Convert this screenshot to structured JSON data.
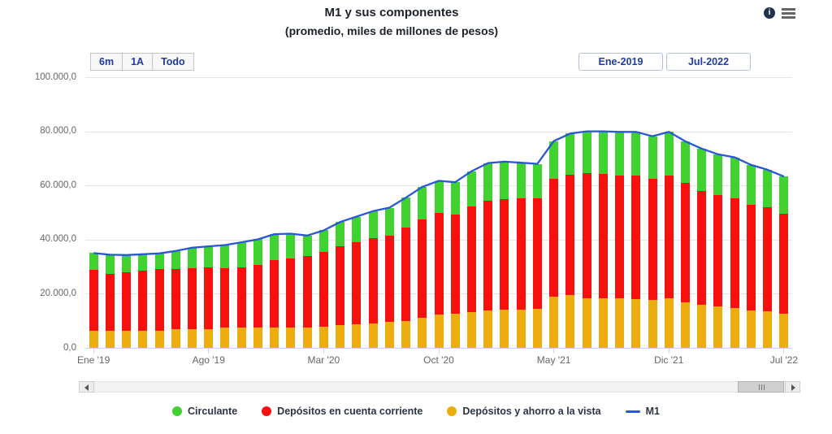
{
  "title": "M1 y sus componentes",
  "subtitle": "(promedio, miles de millones de pesos)",
  "toolbar": {
    "info_icon_glyph": "i"
  },
  "range_selector": {
    "buttons": [
      "6m",
      "1A",
      "Todo"
    ],
    "from_value": "Ene-2019",
    "to_value": "Jul-2022"
  },
  "chart_data": {
    "type": "bar",
    "subtype": "stacked-column-with-line",
    "title": "M1 y sus componentes",
    "subtitle": "(promedio, miles de millones de pesos)",
    "stacked": true,
    "grid": true,
    "legend_position": "bottom",
    "ylim": [
      0,
      100000
    ],
    "xlabel": "",
    "ylabel": "",
    "categories": [
      "Ene '19",
      "Feb '19",
      "Mar '19",
      "Abr '19",
      "May '19",
      "Jun '19",
      "Jul '19",
      "Ago '19",
      "Sep '19",
      "Oct '19",
      "Nov '19",
      "Dic '19",
      "Ene '20",
      "Feb '20",
      "Mar '20",
      "Abr '20",
      "May '20",
      "Jun '20",
      "Jul '20",
      "Ago '20",
      "Sep '20",
      "Oct '20",
      "Nov '20",
      "Dic '20",
      "Ene '21",
      "Feb '21",
      "Mar '21",
      "Abr '21",
      "May '21",
      "Jun '21",
      "Jul '21",
      "Ago '21",
      "Sep '21",
      "Oct '21",
      "Nov '21",
      "Dic '21",
      "Ene '22",
      "Feb '22",
      "Mar '22",
      "Abr '22",
      "May '22",
      "Jun '22",
      "Jul '22"
    ],
    "series": [
      {
        "name": "Circulante",
        "role": "column-top",
        "color": "#40d22e",
        "values": [
          6100,
          7000,
          6400,
          6200,
          5900,
          6800,
          7600,
          7700,
          8600,
          9200,
          9500,
          9600,
          9300,
          7600,
          8000,
          9100,
          9600,
          10100,
          10400,
          11100,
          12100,
          11800,
          11800,
          12900,
          13900,
          13900,
          13200,
          12600,
          13900,
          15200,
          15400,
          15600,
          16200,
          16200,
          15800,
          16200,
          15300,
          15600,
          15000,
          15000,
          14600,
          13800,
          13700
        ]
      },
      {
        "name": "Depósitos en cuenta corriente",
        "role": "column-middle",
        "color": "#f6110e",
        "values": [
          22500,
          21100,
          21600,
          22000,
          22600,
          22100,
          22500,
          22900,
          22000,
          22400,
          23000,
          24800,
          25500,
          26400,
          27700,
          29100,
          30300,
          31400,
          31900,
          34400,
          36400,
          37500,
          36800,
          39100,
          40600,
          40900,
          41000,
          41000,
          43600,
          44600,
          46200,
          46100,
          45400,
          45700,
          44800,
          45300,
          44100,
          42100,
          41100,
          40800,
          39100,
          38400,
          37000
        ]
      },
      {
        "name": "Depósitos y ahorro a la vista",
        "role": "column-bottom",
        "color": "#eead0e",
        "values": [
          6400,
          6300,
          6300,
          6400,
          6400,
          6900,
          6900,
          6900,
          7400,
          7400,
          7600,
          7600,
          7400,
          7500,
          7700,
          8300,
          8600,
          9000,
          9500,
          10000,
          11000,
          12400,
          12600,
          13300,
          13800,
          14000,
          14200,
          14400,
          18900,
          19400,
          18400,
          18300,
          18200,
          17900,
          17600,
          18300,
          16900,
          15900,
          15400,
          14600,
          13900,
          13600,
          12600
        ]
      },
      {
        "name": "M1",
        "role": "line",
        "color": "#2a57d6",
        "values": [
          35000,
          34400,
          34300,
          34600,
          34900,
          35800,
          37000,
          37500,
          38000,
          39000,
          40100,
          42000,
          42200,
          41500,
          43400,
          46500,
          48500,
          50500,
          51800,
          55500,
          59500,
          61700,
          61200,
          65300,
          68300,
          68800,
          68400,
          68000,
          76400,
          79200,
          80000,
          80000,
          79800,
          79800,
          78200,
          79800,
          76300,
          73600,
          71500,
          70400,
          67600,
          65800,
          63300
        ]
      }
    ],
    "y_ticks": [
      {
        "value": 0,
        "label": "0,0"
      },
      {
        "value": 20000,
        "label": "20.000,0"
      },
      {
        "value": 40000,
        "label": "40.000,0"
      },
      {
        "value": 60000,
        "label": "60.000,0"
      },
      {
        "value": 80000,
        "label": "80.000,0"
      },
      {
        "value": 100000,
        "label": "100.000,0"
      }
    ],
    "x_ticks": [
      {
        "index": 0,
        "label": "Ene '19"
      },
      {
        "index": 7,
        "label": "Ago '19"
      },
      {
        "index": 14,
        "label": "Mar '20"
      },
      {
        "index": 21,
        "label": "Oct '20"
      },
      {
        "index": 28,
        "label": "May '21"
      },
      {
        "index": 35,
        "label": "Dic '21"
      },
      {
        "index": 42,
        "label": "Jul '22"
      }
    ]
  },
  "legend": {
    "items": [
      {
        "label": "Circulante",
        "color": "#40d22e",
        "marker": "dot"
      },
      {
        "label": "Depósitos en cuenta corriente",
        "color": "#f6110e",
        "marker": "dot"
      },
      {
        "label": "Depósitos y ahorro a la vista",
        "color": "#eead0e",
        "marker": "dot"
      },
      {
        "label": "M1",
        "color": "#2a57d6",
        "marker": "line"
      }
    ]
  }
}
